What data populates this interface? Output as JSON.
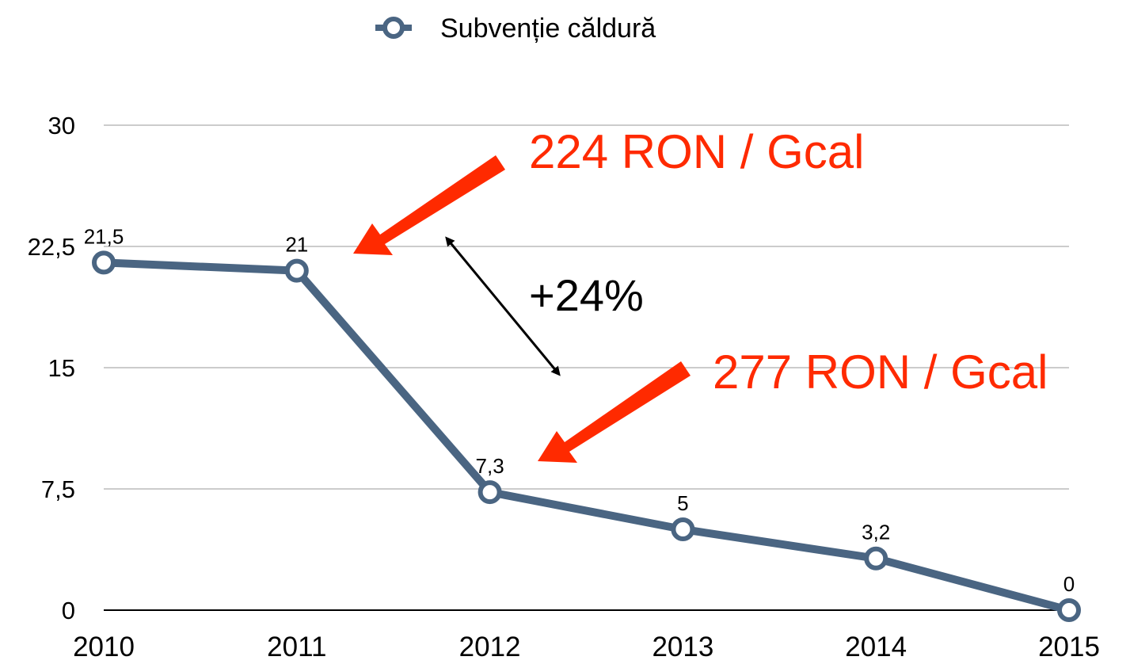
{
  "chart_data": {
    "type": "line",
    "categories": [
      "2010",
      "2011",
      "2012",
      "2013",
      "2014",
      "2015"
    ],
    "series": [
      {
        "name": "Subvenție căldură",
        "color": "#4a6582",
        "values": [
          21.5,
          21,
          7.3,
          5,
          3.2,
          0
        ],
        "value_labels": [
          "21,5",
          "21",
          "7,3",
          "5",
          "3,2",
          "0"
        ]
      }
    ],
    "ylim": [
      0,
      30
    ],
    "yticks": [
      0,
      {
        "value": 7.5,
        "label": "7,5"
      },
      15,
      {
        "value": 22.5,
        "label": "22,5"
      },
      30
    ],
    "grid": true,
    "legend": "top",
    "annotations": [
      "224 RON / Gcal",
      "277 RON / Gcal",
      "+24%"
    ]
  }
}
